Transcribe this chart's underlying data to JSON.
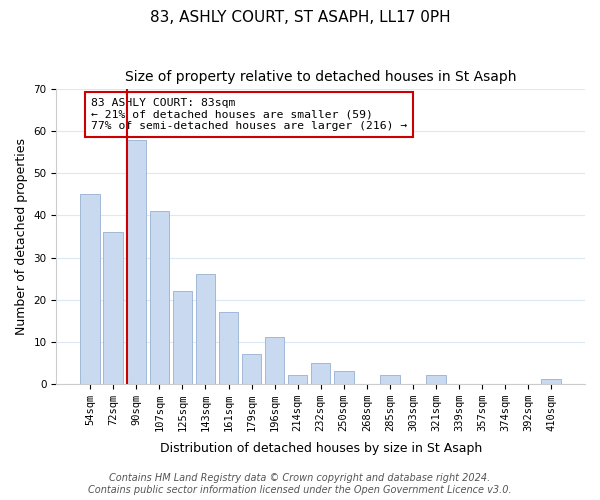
{
  "title": "83, ASHLY COURT, ST ASAPH, LL17 0PH",
  "subtitle": "Size of property relative to detached houses in St Asaph",
  "xlabel": "Distribution of detached houses by size in St Asaph",
  "ylabel": "Number of detached properties",
  "bar_labels": [
    "54sqm",
    "72sqm",
    "90sqm",
    "107sqm",
    "125sqm",
    "143sqm",
    "161sqm",
    "179sqm",
    "196sqm",
    "214sqm",
    "232sqm",
    "250sqm",
    "268sqm",
    "285sqm",
    "303sqm",
    "321sqm",
    "339sqm",
    "357sqm",
    "374sqm",
    "392sqm",
    "410sqm"
  ],
  "bar_values": [
    45,
    36,
    58,
    41,
    22,
    26,
    17,
    7,
    11,
    2,
    5,
    3,
    0,
    2,
    0,
    2,
    0,
    0,
    0,
    0,
    1
  ],
  "bar_color": "#c8d9f0",
  "bar_edge_color": "#a0b8d8",
  "vline_x": 1.575,
  "vline_color": "#cc0000",
  "annotation_text": "83 ASHLY COURT: 83sqm\n← 21% of detached houses are smaller (59)\n77% of semi-detached houses are larger (216) →",
  "annotation_box_color": "#ffffff",
  "annotation_box_edge": "#cc0000",
  "ylim": [
    0,
    70
  ],
  "yticks": [
    0,
    10,
    20,
    30,
    40,
    50,
    60,
    70
  ],
  "footer_line1": "Contains HM Land Registry data © Crown copyright and database right 2024.",
  "footer_line2": "Contains public sector information licensed under the Open Government Licence v3.0.",
  "bg_color": "#ffffff",
  "grid_color": "#dde8f5",
  "title_fontsize": 11,
  "subtitle_fontsize": 10,
  "label_fontsize": 9,
  "tick_fontsize": 7.5,
  "footer_fontsize": 7
}
